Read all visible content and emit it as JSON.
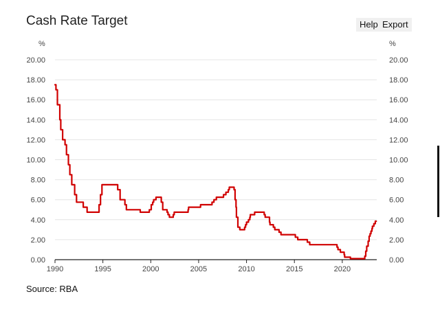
{
  "title": "Cash Rate Target",
  "buttons": {
    "help": "Help",
    "export": "Export"
  },
  "source": "Source: RBA",
  "colors": {
    "line": "#d00000",
    "grid": "#e4e4e4",
    "axis": "#222222",
    "text": "#444444"
  },
  "chart_data": {
    "type": "line",
    "title": "Cash Rate Target",
    "ylabel_left": "%",
    "ylabel_right": "%",
    "xlabel": "",
    "xlim": [
      1990,
      2023.6
    ],
    "ylim": [
      0,
      20
    ],
    "y_ticks": [
      0,
      2,
      4,
      6,
      8,
      10,
      12,
      14,
      16,
      18,
      20
    ],
    "y_tick_labels": [
      "0.00",
      "2.00",
      "4.00",
      "6.00",
      "8.00",
      "10.00",
      "12.00",
      "14.00",
      "16.00",
      "18.00",
      "20.00"
    ],
    "x_ticks": [
      1990,
      1995,
      2000,
      2005,
      2010,
      2015,
      2020
    ],
    "x_tick_labels": [
      "1990",
      "1995",
      "2000",
      "2005",
      "2010",
      "2015",
      "2020"
    ],
    "grid": true,
    "series": [
      {
        "name": "Cash Rate Target",
        "step": true,
        "points": [
          [
            1990.0,
            17.5
          ],
          [
            1990.1,
            17.0
          ],
          [
            1990.25,
            15.5
          ],
          [
            1990.5,
            14.0
          ],
          [
            1990.6,
            13.0
          ],
          [
            1990.8,
            12.0
          ],
          [
            1991.05,
            11.5
          ],
          [
            1991.2,
            10.5
          ],
          [
            1991.4,
            9.5
          ],
          [
            1991.55,
            8.5
          ],
          [
            1991.75,
            7.5
          ],
          [
            1992.05,
            6.5
          ],
          [
            1992.25,
            5.75
          ],
          [
            1992.95,
            5.25
          ],
          [
            1993.35,
            4.75
          ],
          [
            1994.6,
            5.5
          ],
          [
            1994.75,
            6.5
          ],
          [
            1994.9,
            7.5
          ],
          [
            1996.55,
            7.0
          ],
          [
            1996.8,
            6.0
          ],
          [
            1997.3,
            5.5
          ],
          [
            1997.45,
            5.0
          ],
          [
            1998.9,
            4.75
          ],
          [
            1999.85,
            5.0
          ],
          [
            2000.05,
            5.5
          ],
          [
            2000.2,
            5.75
          ],
          [
            2000.3,
            6.0
          ],
          [
            2000.55,
            6.25
          ],
          [
            2001.1,
            5.75
          ],
          [
            2001.25,
            5.0
          ],
          [
            2001.7,
            4.75
          ],
          [
            2001.8,
            4.5
          ],
          [
            2001.95,
            4.25
          ],
          [
            2002.35,
            4.5
          ],
          [
            2002.45,
            4.75
          ],
          [
            2003.9,
            5.0
          ],
          [
            2003.95,
            5.25
          ],
          [
            2005.2,
            5.5
          ],
          [
            2006.4,
            5.75
          ],
          [
            2006.6,
            6.0
          ],
          [
            2006.85,
            6.25
          ],
          [
            2007.6,
            6.5
          ],
          [
            2007.85,
            6.75
          ],
          [
            2008.1,
            7.0
          ],
          [
            2008.2,
            7.25
          ],
          [
            2008.7,
            7.0
          ],
          [
            2008.8,
            6.0
          ],
          [
            2008.9,
            5.25
          ],
          [
            2008.95,
            4.25
          ],
          [
            2009.1,
            3.25
          ],
          [
            2009.3,
            3.0
          ],
          [
            2009.8,
            3.25
          ],
          [
            2009.9,
            3.5
          ],
          [
            2010.0,
            3.75
          ],
          [
            2010.2,
            4.0
          ],
          [
            2010.35,
            4.25
          ],
          [
            2010.4,
            4.5
          ],
          [
            2010.85,
            4.75
          ],
          [
            2011.85,
            4.5
          ],
          [
            2011.95,
            4.25
          ],
          [
            2012.4,
            3.75
          ],
          [
            2012.45,
            3.5
          ],
          [
            2012.8,
            3.25
          ],
          [
            2012.95,
            3.0
          ],
          [
            2013.4,
            2.75
          ],
          [
            2013.6,
            2.5
          ],
          [
            2015.1,
            2.25
          ],
          [
            2015.35,
            2.0
          ],
          [
            2016.35,
            1.75
          ],
          [
            2016.6,
            1.5
          ],
          [
            2019.45,
            1.25
          ],
          [
            2019.55,
            1.0
          ],
          [
            2019.8,
            0.75
          ],
          [
            2020.2,
            0.5
          ],
          [
            2020.25,
            0.25
          ],
          [
            2020.85,
            0.1
          ],
          [
            2022.35,
            0.35
          ],
          [
            2022.45,
            0.85
          ],
          [
            2022.55,
            1.35
          ],
          [
            2022.7,
            1.85
          ],
          [
            2022.8,
            2.35
          ],
          [
            2022.9,
            2.6
          ],
          [
            2023.0,
            2.85
          ],
          [
            2023.1,
            3.1
          ],
          [
            2023.15,
            3.35
          ],
          [
            2023.3,
            3.6
          ],
          [
            2023.45,
            3.85
          ],
          [
            2023.55,
            3.85
          ]
        ]
      }
    ]
  }
}
